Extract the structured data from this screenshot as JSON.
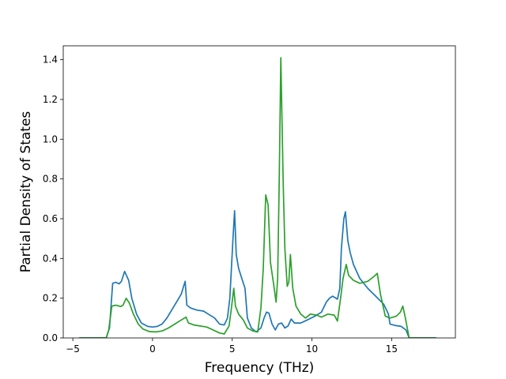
{
  "chart_data": {
    "type": "line",
    "title": "",
    "xlabel": "Frequency (THz)",
    "ylabel": "Partial Density of States",
    "xlim": [
      -5.6,
      19.0
    ],
    "ylim": [
      0.0,
      1.47
    ],
    "xticks": [
      -5,
      0,
      5,
      10,
      15
    ],
    "yticks": [
      0.0,
      0.2,
      0.4,
      0.6,
      0.8,
      1.0,
      1.2,
      1.4
    ],
    "grid": false,
    "legend": "none",
    "series": [
      {
        "color": "#1f77b4",
        "points": [
          [
            -4.6,
            0.0
          ],
          [
            -2.9,
            0.0
          ],
          [
            -2.7,
            0.05
          ],
          [
            -2.5,
            0.275
          ],
          [
            -2.3,
            0.28
          ],
          [
            -2.1,
            0.272
          ],
          [
            -1.95,
            0.285
          ],
          [
            -1.75,
            0.335
          ],
          [
            -1.5,
            0.29
          ],
          [
            -1.3,
            0.2
          ],
          [
            -1.0,
            0.12
          ],
          [
            -0.7,
            0.075
          ],
          [
            -0.3,
            0.058
          ],
          [
            0.0,
            0.055
          ],
          [
            0.3,
            0.058
          ],
          [
            0.6,
            0.07
          ],
          [
            0.9,
            0.1
          ],
          [
            1.2,
            0.14
          ],
          [
            1.5,
            0.18
          ],
          [
            1.8,
            0.22
          ],
          [
            2.05,
            0.285
          ],
          [
            2.15,
            0.165
          ],
          [
            2.4,
            0.15
          ],
          [
            2.8,
            0.14
          ],
          [
            3.2,
            0.135
          ],
          [
            3.5,
            0.12
          ],
          [
            3.9,
            0.1
          ],
          [
            4.2,
            0.07
          ],
          [
            4.5,
            0.065
          ],
          [
            4.7,
            0.1
          ],
          [
            4.85,
            0.2
          ],
          [
            4.95,
            0.35
          ],
          [
            5.05,
            0.5
          ],
          [
            5.15,
            0.64
          ],
          [
            5.25,
            0.42
          ],
          [
            5.4,
            0.35
          ],
          [
            5.6,
            0.3
          ],
          [
            5.8,
            0.25
          ],
          [
            5.95,
            0.1
          ],
          [
            6.2,
            0.05
          ],
          [
            6.5,
            0.03
          ],
          [
            6.8,
            0.05
          ],
          [
            7.0,
            0.1
          ],
          [
            7.15,
            0.13
          ],
          [
            7.3,
            0.125
          ],
          [
            7.5,
            0.07
          ],
          [
            7.7,
            0.04
          ],
          [
            7.9,
            0.07
          ],
          [
            8.1,
            0.075
          ],
          [
            8.3,
            0.05
          ],
          [
            8.5,
            0.06
          ],
          [
            8.7,
            0.095
          ],
          [
            8.9,
            0.075
          ],
          [
            9.3,
            0.075
          ],
          [
            9.7,
            0.09
          ],
          [
            10.2,
            0.11
          ],
          [
            10.6,
            0.13
          ],
          [
            10.9,
            0.18
          ],
          [
            11.1,
            0.2
          ],
          [
            11.3,
            0.21
          ],
          [
            11.6,
            0.195
          ],
          [
            11.75,
            0.25
          ],
          [
            11.85,
            0.45
          ],
          [
            12.0,
            0.6
          ],
          [
            12.1,
            0.635
          ],
          [
            12.25,
            0.49
          ],
          [
            12.4,
            0.43
          ],
          [
            12.6,
            0.37
          ],
          [
            13.0,
            0.3
          ],
          [
            13.5,
            0.25
          ],
          [
            14.0,
            0.21
          ],
          [
            14.5,
            0.17
          ],
          [
            14.8,
            0.12
          ],
          [
            14.9,
            0.07
          ],
          [
            15.2,
            0.063
          ],
          [
            15.6,
            0.058
          ],
          [
            15.9,
            0.04
          ],
          [
            16.1,
            0.0
          ],
          [
            17.8,
            0.0
          ]
        ]
      },
      {
        "color": "#2ca02c",
        "points": [
          [
            -4.6,
            0.0
          ],
          [
            -2.9,
            0.0
          ],
          [
            -2.75,
            0.04
          ],
          [
            -2.55,
            0.16
          ],
          [
            -2.3,
            0.165
          ],
          [
            -2.0,
            0.158
          ],
          [
            -1.85,
            0.165
          ],
          [
            -1.65,
            0.2
          ],
          [
            -1.45,
            0.175
          ],
          [
            -1.2,
            0.12
          ],
          [
            -0.9,
            0.07
          ],
          [
            -0.6,
            0.045
          ],
          [
            -0.2,
            0.032
          ],
          [
            0.2,
            0.03
          ],
          [
            0.6,
            0.035
          ],
          [
            1.0,
            0.05
          ],
          [
            1.4,
            0.07
          ],
          [
            1.8,
            0.09
          ],
          [
            2.1,
            0.105
          ],
          [
            2.25,
            0.075
          ],
          [
            2.6,
            0.065
          ],
          [
            3.0,
            0.06
          ],
          [
            3.4,
            0.055
          ],
          [
            3.8,
            0.04
          ],
          [
            4.2,
            0.025
          ],
          [
            4.5,
            0.02
          ],
          [
            4.8,
            0.06
          ],
          [
            4.95,
            0.15
          ],
          [
            5.1,
            0.25
          ],
          [
            5.2,
            0.16
          ],
          [
            5.4,
            0.12
          ],
          [
            5.7,
            0.09
          ],
          [
            5.95,
            0.05
          ],
          [
            6.3,
            0.035
          ],
          [
            6.6,
            0.03
          ],
          [
            6.8,
            0.15
          ],
          [
            6.95,
            0.35
          ],
          [
            7.1,
            0.72
          ],
          [
            7.25,
            0.67
          ],
          [
            7.4,
            0.38
          ],
          [
            7.6,
            0.27
          ],
          [
            7.75,
            0.18
          ],
          [
            7.85,
            0.3
          ],
          [
            7.95,
            0.8
          ],
          [
            8.05,
            1.41
          ],
          [
            8.2,
            0.78
          ],
          [
            8.3,
            0.45
          ],
          [
            8.45,
            0.26
          ],
          [
            8.55,
            0.28
          ],
          [
            8.65,
            0.42
          ],
          [
            8.8,
            0.25
          ],
          [
            9.0,
            0.16
          ],
          [
            9.3,
            0.12
          ],
          [
            9.6,
            0.1
          ],
          [
            9.9,
            0.12
          ],
          [
            10.3,
            0.115
          ],
          [
            10.6,
            0.105
          ],
          [
            11.0,
            0.12
          ],
          [
            11.4,
            0.115
          ],
          [
            11.6,
            0.085
          ],
          [
            11.8,
            0.2
          ],
          [
            11.95,
            0.3
          ],
          [
            12.15,
            0.37
          ],
          [
            12.3,
            0.315
          ],
          [
            12.6,
            0.29
          ],
          [
            13.0,
            0.275
          ],
          [
            13.5,
            0.285
          ],
          [
            13.9,
            0.31
          ],
          [
            14.1,
            0.325
          ],
          [
            14.3,
            0.22
          ],
          [
            14.6,
            0.11
          ],
          [
            14.9,
            0.1
          ],
          [
            15.3,
            0.11
          ],
          [
            15.55,
            0.13
          ],
          [
            15.7,
            0.16
          ],
          [
            15.85,
            0.105
          ],
          [
            16.1,
            0.0
          ],
          [
            17.8,
            0.0
          ]
        ]
      }
    ]
  }
}
